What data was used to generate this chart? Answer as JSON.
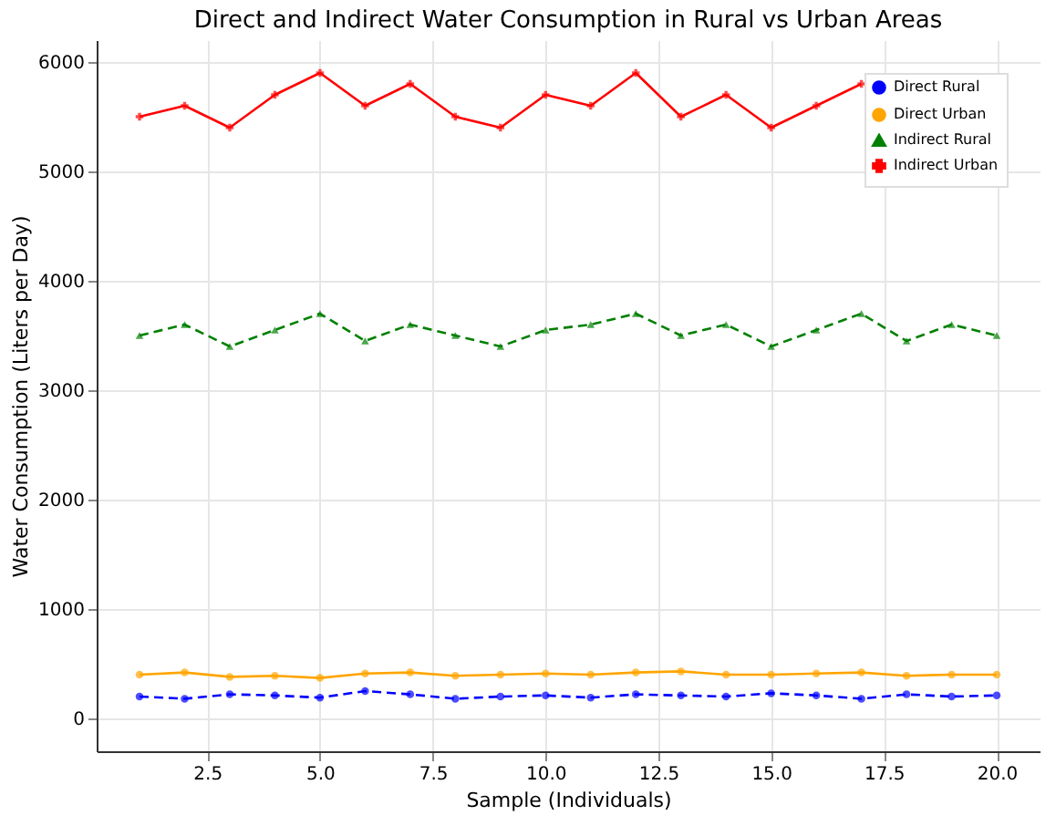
{
  "chart_data": {
    "type": "line",
    "title": "Direct and Indirect Water Consumption in Rural vs Urban Areas",
    "xlabel": "Sample (Individuals)",
    "ylabel": "Water Consumption (Liters per Day)",
    "x": [
      1,
      2,
      3,
      4,
      5,
      6,
      7,
      8,
      9,
      10,
      11,
      12,
      13,
      14,
      15,
      16,
      17,
      18,
      19,
      20
    ],
    "series": [
      {
        "name": "Direct Rural",
        "color": "#0000ff",
        "marker": "circle",
        "line_style": "dashed",
        "values": [
          200,
          180,
          220,
          210,
          190,
          250,
          220,
          180,
          200,
          210,
          190,
          220,
          210,
          200,
          230,
          210,
          180,
          220,
          200,
          210
        ]
      },
      {
        "name": "Direct Urban",
        "color": "#ffa500",
        "marker": "circle",
        "line_style": "solid",
        "values": [
          400,
          420,
          380,
          390,
          370,
          410,
          420,
          390,
          400,
          410,
          400,
          420,
          430,
          400,
          400,
          410,
          420,
          390,
          400,
          400
        ]
      },
      {
        "name": "Indirect Rural",
        "color": "#008000",
        "marker": "triangle",
        "line_style": "dashed",
        "values": [
          3500,
          3600,
          3400,
          3550,
          3700,
          3450,
          3600,
          3500,
          3400,
          3550,
          3600,
          3700,
          3500,
          3600,
          3400,
          3550,
          3700,
          3450,
          3600,
          3500
        ]
      },
      {
        "name": "Indirect Urban",
        "color": "#ff0000",
        "marker": "cross",
        "line_style": "solid",
        "values": [
          5500,
          5600,
          5400,
          5700,
          5900,
          5600,
          5800,
          5500,
          5400,
          5700,
          5600,
          5900,
          5500,
          5700,
          5400,
          5600,
          5800,
          null,
          null,
          null
        ]
      }
    ],
    "xlim": [
      0.05,
      20.95
    ],
    "xticks": [
      {
        "value": 2.5,
        "label": "2.5"
      },
      {
        "value": 5,
        "label": "5.0"
      },
      {
        "value": 7.5,
        "label": "7.5"
      },
      {
        "value": 10,
        "label": "10.0"
      },
      {
        "value": 12.5,
        "label": "12.5"
      },
      {
        "value": 15,
        "label": "15.0"
      },
      {
        "value": 17.5,
        "label": "17.5"
      },
      {
        "value": 20,
        "label": "20.0"
      }
    ],
    "ylim": [
      -300,
      6200
    ],
    "yticks": [
      0,
      1000,
      2000,
      3000,
      4000,
      5000,
      6000
    ],
    "grid": true,
    "legend": "top right"
  }
}
